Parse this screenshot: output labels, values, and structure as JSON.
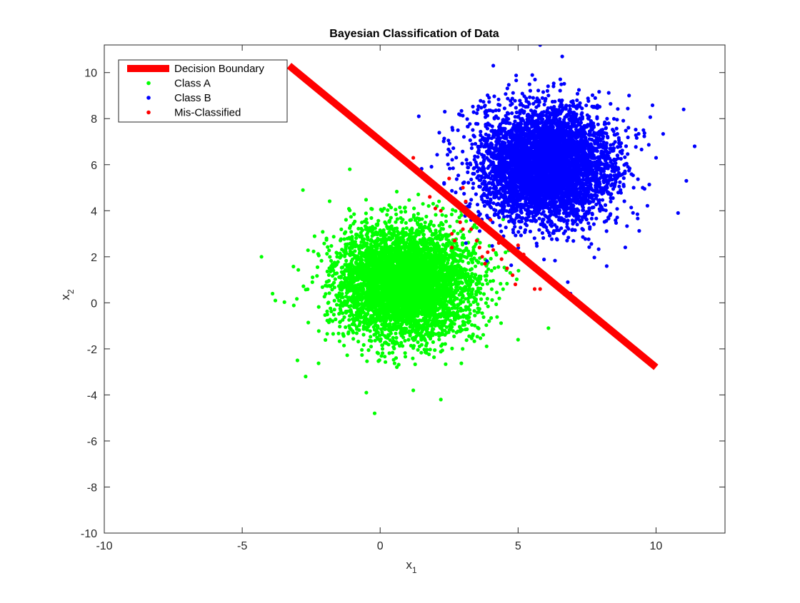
{
  "chart_data": {
    "type": "scatter",
    "title": "Bayesian Classification of Data",
    "xlabel": {
      "base": "x",
      "sub": "1"
    },
    "ylabel": {
      "base": "x",
      "sub": "2"
    },
    "xlim": [
      -10,
      12.5
    ],
    "ylim": [
      -10,
      11.2
    ],
    "xticks": [
      -10,
      -5,
      0,
      5,
      10
    ],
    "xtick_labels": [
      "-10",
      "-5",
      "0",
      "5",
      "10"
    ],
    "yticks": [
      -10,
      -8,
      -6,
      -4,
      -2,
      0,
      2,
      4,
      6,
      8,
      10
    ],
    "ytick_labels": [
      "-10",
      "-8",
      "-6",
      "-4",
      "-2",
      "0",
      "2",
      "4",
      "6",
      "8",
      "10"
    ],
    "grid": false,
    "legend_position": "top-left",
    "legend": [
      {
        "label": "Decision Boundary",
        "kind": "line",
        "color": "#ff0000"
      },
      {
        "label": "Class A",
        "kind": "point",
        "color": "#00ff00"
      },
      {
        "label": "Class B",
        "kind": "point",
        "color": "#0000ff"
      },
      {
        "label": "Mis-Classified",
        "kind": "point",
        "color": "#ff0000"
      }
    ],
    "decision_boundary": {
      "name": "Decision Boundary",
      "color": "#ff0000",
      "points": [
        [
          -3.3,
          10.3
        ],
        [
          10.0,
          -2.8
        ]
      ]
    },
    "series": [
      {
        "name": "Class A",
        "color": "#00ff00",
        "distribution": "gaussian",
        "center": [
          0.9,
          0.9
        ],
        "std": [
          1.2,
          1.2
        ],
        "n_points": 5000,
        "outliers": [
          [
            -4.3,
            2.0
          ],
          [
            -3.9,
            0.4
          ],
          [
            -3.8,
            0.1
          ],
          [
            -2.8,
            4.9
          ],
          [
            -2.7,
            -3.2
          ],
          [
            -3.0,
            -2.5
          ],
          [
            -1.1,
            5.8
          ],
          [
            -0.2,
            -4.8
          ],
          [
            2.2,
            -4.2
          ],
          [
            6.1,
            -1.1
          ],
          [
            5.0,
            -1.6
          ],
          [
            1.2,
            -3.8
          ],
          [
            -0.5,
            -3.9
          ]
        ]
      },
      {
        "name": "Class B",
        "color": "#0000ff",
        "distribution": "gaussian",
        "center": [
          6.0,
          6.0
        ],
        "std": [
          1.2,
          1.2
        ],
        "n_points": 5000,
        "outliers": [
          [
            5.8,
            11.2
          ],
          [
            6.6,
            10.7
          ],
          [
            11.0,
            8.4
          ],
          [
            11.4,
            6.8
          ],
          [
            11.1,
            5.3
          ],
          [
            10.8,
            3.9
          ],
          [
            6.9,
            0.4
          ],
          [
            6.8,
            0.9
          ],
          [
            4.1,
            10.3
          ],
          [
            1.4,
            8.1
          ]
        ]
      },
      {
        "name": "Mis-Classified",
        "color": "#ff0000",
        "points": [
          [
            1.2,
            6.3
          ],
          [
            1.8,
            4.6
          ],
          [
            2.0,
            4.1
          ],
          [
            2.6,
            3.0
          ],
          [
            2.7,
            2.7
          ],
          [
            2.6,
            2.4
          ],
          [
            3.0,
            3.2
          ],
          [
            3.3,
            3.2
          ],
          [
            3.5,
            2.7
          ],
          [
            3.6,
            2.4
          ],
          [
            3.7,
            2.0
          ],
          [
            3.8,
            1.7
          ],
          [
            3.9,
            2.2
          ],
          [
            4.0,
            3.6
          ],
          [
            4.2,
            3.0
          ],
          [
            4.3,
            2.6
          ],
          [
            4.4,
            1.9
          ],
          [
            4.6,
            1.5
          ],
          [
            4.8,
            1.2
          ],
          [
            4.9,
            0.8
          ],
          [
            5.0,
            2.5
          ],
          [
            5.2,
            2.1
          ],
          [
            5.6,
            0.6
          ],
          [
            5.8,
            0.6
          ],
          [
            3.1,
            4.4
          ],
          [
            3.4,
            3.7
          ],
          [
            2.2,
            4.0
          ],
          [
            2.9,
            3.5
          ],
          [
            2.5,
            5.4
          ],
          [
            3.0,
            5.0
          ],
          [
            3.7,
            3.3
          ],
          [
            4.1,
            2.3
          ]
        ]
      }
    ]
  }
}
